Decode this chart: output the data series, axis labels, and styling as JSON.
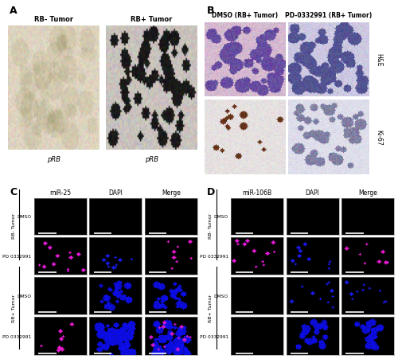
{
  "figure_bg": "#ffffff",
  "panel_A": {
    "label": "A",
    "title_left": "RB- Tumor",
    "title_right": "RB+ Tumor",
    "caption_left": "pRB",
    "caption_right": "pRB"
  },
  "panel_B": {
    "label": "B",
    "col1_title": "DMSO (RB+ Tumor)",
    "col2_title": "PD-0332991 (RB+ Tumor)",
    "row1_label": "H&E",
    "row2_label": "Ki-67"
  },
  "panel_C": {
    "label": "C",
    "col_labels": [
      "miR-25",
      "DAPI",
      "Merge"
    ],
    "row_group1": "RB- Tumor",
    "row_group2": "RB+ Tumor",
    "row1_label": "DMSO",
    "row2_label": "PD 0332991",
    "row3_label": "DMSO",
    "row4_label": "PD 0332991"
  },
  "panel_D": {
    "label": "D",
    "col_labels": [
      "miR-106B",
      "DAPI",
      "Merge"
    ],
    "row_group1": "RB- Tumor",
    "row_group2": "RB+ Tumor",
    "row1_label": "DMSO",
    "row2_label": "PD 0332991",
    "row3_label": "DMSO",
    "row4_label": "PD 0332991"
  },
  "black": "#000000",
  "white": "#ffffff",
  "label_fontsize": 9,
  "small_fontsize": 6,
  "tiny_fontsize": 5
}
